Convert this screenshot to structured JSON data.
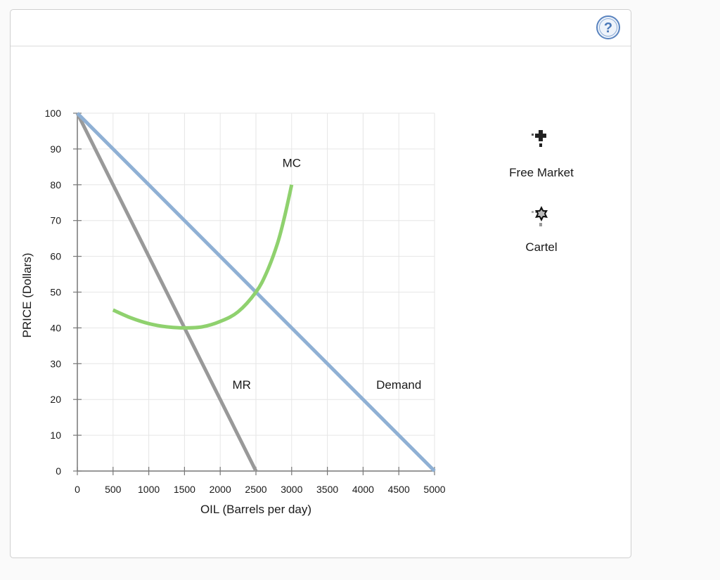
{
  "help_icon": "question-circle-icon",
  "legend": {
    "items": [
      {
        "label": "Free Market",
        "icon": "plus-marker-icon",
        "color": "#222222"
      },
      {
        "label": "Cartel",
        "icon": "star-marker-icon",
        "color": "#222222"
      }
    ]
  },
  "chart_data": {
    "type": "line",
    "title": "",
    "xlabel": "OIL (Barrels per day)",
    "ylabel": "PRICE (Dollars)",
    "xlim": [
      0,
      5000
    ],
    "ylim": [
      0,
      100
    ],
    "x_ticks": [
      0,
      500,
      1000,
      1500,
      2000,
      2500,
      3000,
      3500,
      4000,
      4500,
      5000
    ],
    "y_ticks": [
      0,
      10,
      20,
      30,
      40,
      50,
      60,
      70,
      80,
      90,
      100
    ],
    "grid": true,
    "series": [
      {
        "name": "Demand",
        "color": "#8fb0d4",
        "x": [
          0,
          5000
        ],
        "y": [
          100,
          0
        ]
      },
      {
        "name": "MR",
        "color": "#999999",
        "x": [
          0,
          2500
        ],
        "y": [
          100,
          0
        ]
      },
      {
        "name": "MC",
        "color": "#8fd16e",
        "x": [
          500,
          750,
          1000,
          1250,
          1500,
          1750,
          2000,
          2250,
          2500,
          2650,
          2800,
          2900,
          3000
        ],
        "y": [
          45,
          42.8,
          41.2,
          40.3,
          40,
          40.3,
          41.8,
          44.5,
          50,
          55.5,
          63.5,
          71,
          80
        ]
      }
    ],
    "annotations": [
      {
        "text": "MC",
        "x": 3000,
        "y": 85
      },
      {
        "text": "MR",
        "x": 2300,
        "y": 23
      },
      {
        "text": "Demand",
        "x": 4500,
        "y": 23
      }
    ]
  }
}
